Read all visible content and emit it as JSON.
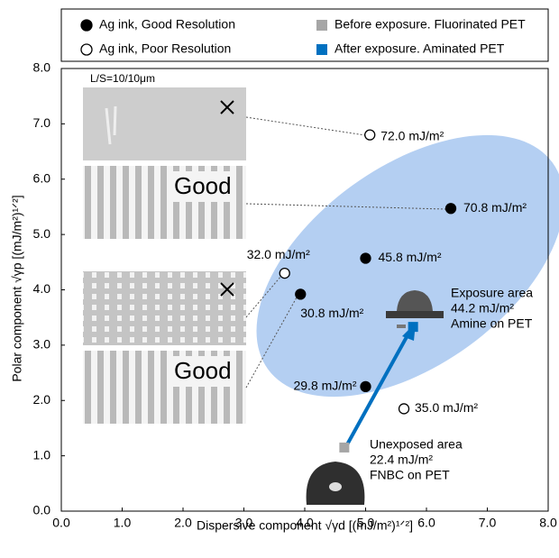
{
  "chart_data": {
    "type": "scatter",
    "x_label": "Dispersive component  √γd   [(mJ/m²)¹ᐟ²]",
    "y_label": "Polar component  √γp   [(mJ/m²)¹ᐟ²]",
    "xlim": [
      0,
      8
    ],
    "ylim": [
      0,
      8
    ],
    "xticks": [
      {
        "value": 0,
        "label": "0.0"
      },
      {
        "value": 1,
        "label": "1.0"
      },
      {
        "value": 2,
        "label": "2.0"
      },
      {
        "value": 3,
        "label": "3.0"
      },
      {
        "value": 4,
        "label": "4.0"
      },
      {
        "value": 5,
        "label": "5.0"
      },
      {
        "value": 6,
        "label": "6.0"
      },
      {
        "value": 7,
        "label": "7.0"
      },
      {
        "value": 8,
        "label": "8.0"
      }
    ],
    "yticks": [
      {
        "value": 0,
        "label": "0.0"
      },
      {
        "value": 1,
        "label": "1.0"
      },
      {
        "value": 2,
        "label": "2.0"
      },
      {
        "value": 3,
        "label": "3.0"
      },
      {
        "value": 4,
        "label": "4.0"
      },
      {
        "value": 5,
        "label": "5.0"
      },
      {
        "value": 6,
        "label": "6.0"
      },
      {
        "value": 7,
        "label": "7.0"
      },
      {
        "value": 8,
        "label": "8.0"
      }
    ],
    "grid": false,
    "series": [
      {
        "name": "Ag ink, Good Resolution",
        "color": "#000000",
        "marker": "circle",
        "x": [
          6.4,
          5.0,
          3.93,
          5.0
        ],
        "values": [
          5.47,
          4.57,
          3.92,
          2.25
        ],
        "value_labels": [
          "70.8 mJ/m²",
          "45.8 mJ/m²",
          "30.8 mJ/m²",
          "29.8 mJ/m²"
        ]
      },
      {
        "name": "Ag ink, Poor Resolution",
        "color": "#000000",
        "marker": "open-circle",
        "x": [
          5.07,
          3.67,
          5.63
        ],
        "values": [
          6.8,
          4.3,
          1.85
        ],
        "value_labels": [
          "72.0 mJ/m²",
          "32.0 mJ/m²",
          "35.0 mJ/m²"
        ]
      },
      {
        "name": "Before exposure. Fluorinated PET",
        "color": "#a6a6a6",
        "marker": "square",
        "x": [
          4.65
        ],
        "values": [
          1.15
        ]
      },
      {
        "name": "After exposure. Aminated PET",
        "color": "#0070c0",
        "marker": "square",
        "x": [
          5.78
        ],
        "values": [
          3.33
        ]
      }
    ],
    "annotations": [
      {
        "lines": [
          "Exposure area",
          "44.2 mJ/m²",
          "Amine on PET"
        ]
      },
      {
        "lines": [
          "Unexposed area",
          "22.4 mJ/m²",
          "FNBC on PET"
        ]
      }
    ],
    "image_labels": [
      "L/S=10/10μm",
      "Good",
      "Good"
    ]
  }
}
